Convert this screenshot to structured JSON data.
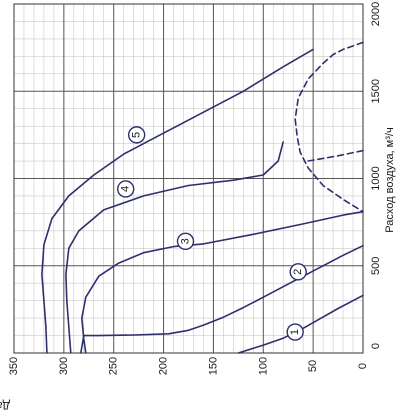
{
  "chart_data": {
    "type": "line",
    "xlabel": "Давление, Па",
    "ylabel": "Расход воздуха, м³/ч",
    "x_ticks": [
      "350",
      "300",
      "250",
      "200",
      "150",
      "100",
      "50",
      "0"
    ],
    "y_ticks": [
      "0",
      "500",
      "1000",
      "1500",
      "2000"
    ],
    "xlim": [
      0,
      350
    ],
    "ylim": [
      0,
      2000
    ],
    "x_reversed": true,
    "grid": true,
    "line_color": "#2e2f6e",
    "series": [
      {
        "label": "1",
        "style": "solid",
        "points": [
          [
            0,
            330
          ],
          [
            25,
            255
          ],
          [
            45,
            190
          ],
          [
            62,
            135
          ],
          [
            80,
            85
          ],
          [
            100,
            45
          ],
          [
            125,
            0
          ]
        ]
      },
      {
        "label": "2",
        "style": "solid",
        "points": [
          [
            0,
            615
          ],
          [
            20,
            560
          ],
          [
            40,
            500
          ],
          [
            60,
            440
          ],
          [
            80,
            380
          ],
          [
            100,
            320
          ],
          [
            120,
            260
          ],
          [
            140,
            205
          ],
          [
            160,
            160
          ],
          [
            175,
            130
          ],
          [
            195,
            110
          ],
          [
            230,
            103
          ],
          [
            265,
            100
          ],
          [
            280,
            100
          ],
          [
            283,
            0
          ]
        ]
      },
      {
        "label": "3",
        "style": "solid",
        "points": [
          [
            0,
            810
          ],
          [
            20,
            790
          ],
          [
            60,
            740
          ],
          [
            110,
            680
          ],
          [
            160,
            625
          ],
          [
            190,
            610
          ],
          [
            220,
            575
          ],
          [
            245,
            515
          ],
          [
            265,
            440
          ],
          [
            278,
            320
          ],
          [
            282,
            200
          ],
          [
            280,
            80
          ],
          [
            278,
            0
          ]
        ]
      },
      {
        "label": "4",
        "style": "solid",
        "points": [
          [
            80,
            1210
          ],
          [
            85,
            1100
          ],
          [
            100,
            1020
          ],
          [
            130,
            990
          ],
          [
            175,
            960
          ],
          [
            220,
            900
          ],
          [
            260,
            820
          ],
          [
            285,
            700
          ],
          [
            295,
            600
          ],
          [
            298,
            450
          ],
          [
            297,
            300
          ],
          [
            295,
            150
          ],
          [
            293,
            0
          ]
        ]
      },
      {
        "label": "5",
        "style": "solid",
        "points": [
          [
            50,
            1740
          ],
          [
            80,
            1640
          ],
          [
            120,
            1500
          ],
          [
            160,
            1380
          ],
          [
            200,
            1260
          ],
          [
            240,
            1140
          ],
          [
            270,
            1020
          ],
          [
            295,
            900
          ],
          [
            312,
            770
          ],
          [
            320,
            620
          ],
          [
            322,
            450
          ],
          [
            320,
            300
          ],
          [
            318,
            150
          ],
          [
            317,
            0
          ]
        ]
      },
      {
        "label": "",
        "style": "dashed",
        "points": [
          [
            0,
            1780
          ],
          [
            20,
            1740
          ],
          [
            30,
            1710
          ],
          [
            40,
            1660
          ],
          [
            55,
            1570
          ],
          [
            65,
            1460
          ],
          [
            68,
            1340
          ],
          [
            66,
            1240
          ],
          [
            63,
            1150
          ],
          [
            55,
            1060
          ],
          [
            40,
            960
          ],
          [
            20,
            880
          ],
          [
            0,
            810
          ]
        ]
      },
      {
        "label": "",
        "style": "dashed",
        "points": [
          [
            0,
            1160
          ],
          [
            25,
            1130
          ],
          [
            55,
            1100
          ]
        ]
      }
    ],
    "markers": [
      {
        "label": "1",
        "x": 68,
        "y": 120
      },
      {
        "label": "2",
        "x": 65,
        "y": 465
      },
      {
        "label": "3",
        "x": 178,
        "y": 640
      },
      {
        "label": "4",
        "x": 238,
        "y": 940
      },
      {
        "label": "5",
        "x": 227,
        "y": 1250
      }
    ]
  }
}
